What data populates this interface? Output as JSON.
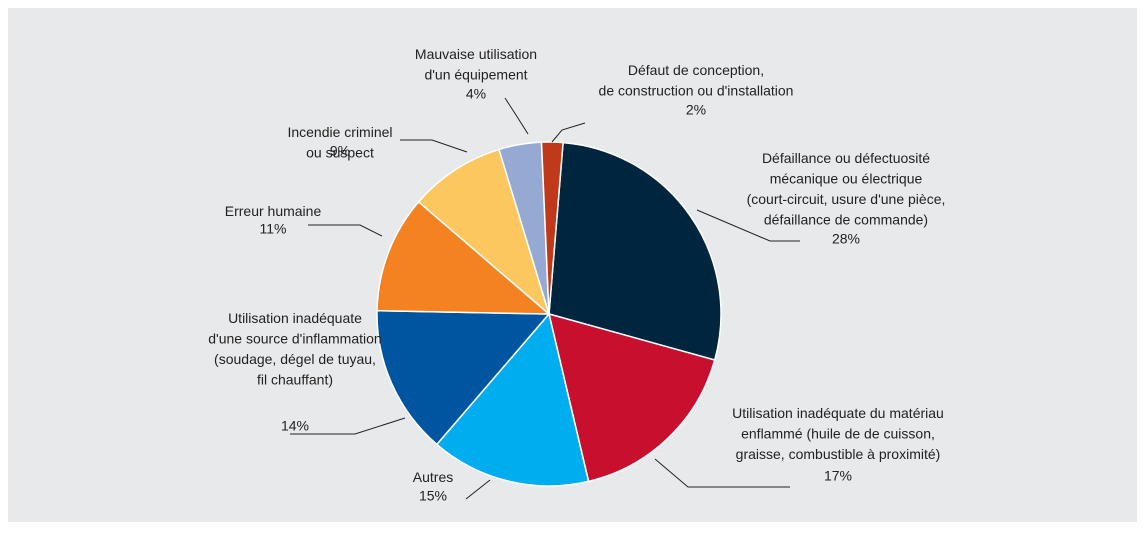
{
  "chart_data": {
    "type": "pie",
    "categories": [
      "Défaillance ou défectuosité\nmécanique ou électrique\n(court-circuit, usure d'une pièce,\ndéfaillance de commande)",
      "Utilisation inadéquate du matériau\nenflammé (huile de de cuisson,\ngraisse, combustible à proximité)",
      "Autres",
      "Utilisation inadéquate\nd'une source d'inflammation\n(soudage, dégel de tuyau,\nfil chauffant)",
      "Erreur humaine",
      "Incendie criminel\nou suspect",
      "Mauvaise utilisation\nd'un équipement",
      "Défaut de conception,\nde construction ou d'installation"
    ],
    "values": [
      28,
      17,
      15,
      14,
      11,
      9,
      4,
      2
    ],
    "value_labels": [
      "28%",
      "17%",
      "15%",
      "14%",
      "11%",
      "9%",
      "4%",
      "2%"
    ],
    "colors": [
      "#00263f",
      "#c8102e",
      "#00aeef",
      "#0055a0",
      "#f58220",
      "#fdc75f",
      "#96a9d2",
      "#c0391b"
    ]
  }
}
